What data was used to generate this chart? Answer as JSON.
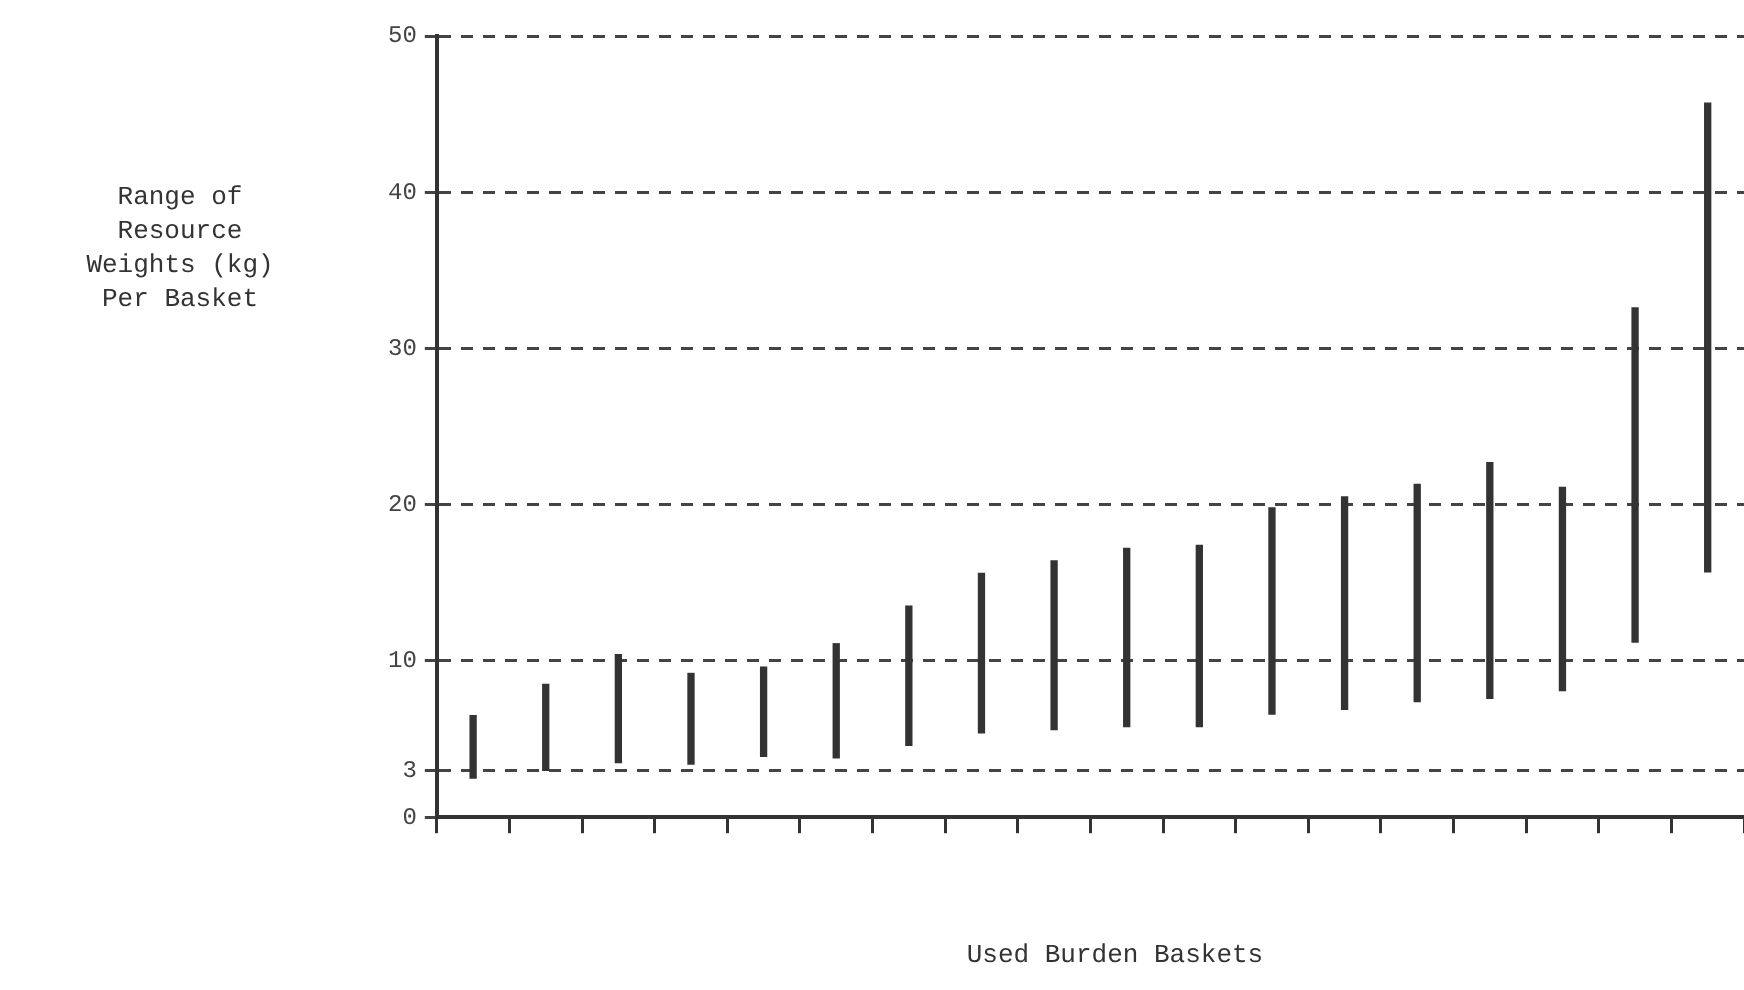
{
  "chart_data": {
    "type": "bar",
    "xlabel": "Used Burden Baskets",
    "ylabel": "Range of Resource Weights (kg) Per Basket",
    "categories": [
      null,
      null,
      null,
      null,
      null,
      null,
      null,
      null,
      null,
      null,
      null,
      null,
      null,
      null,
      null,
      null,
      null,
      null
    ],
    "base": [
      2.5,
      3,
      3.5,
      3.4,
      3.9,
      3.8,
      4.6,
      5.4,
      5.6,
      5.8,
      5.8,
      6.6,
      6.9,
      7.4,
      7.6,
      8.1,
      11.2,
      15.7
    ],
    "values": [
      4,
      5.5,
      6.9,
      5.8,
      5.7,
      7.3,
      8.9,
      10.2,
      10.8,
      11.4,
      11.6,
      13.2,
      13.6,
      13.9,
      15.1,
      13,
      21.4,
      30
    ],
    "color": "#333333",
    "ylim": [
      0,
      50
    ],
    "yticks": [
      0,
      3,
      10,
      20,
      30,
      40,
      50
    ],
    "grid": "y"
  }
}
